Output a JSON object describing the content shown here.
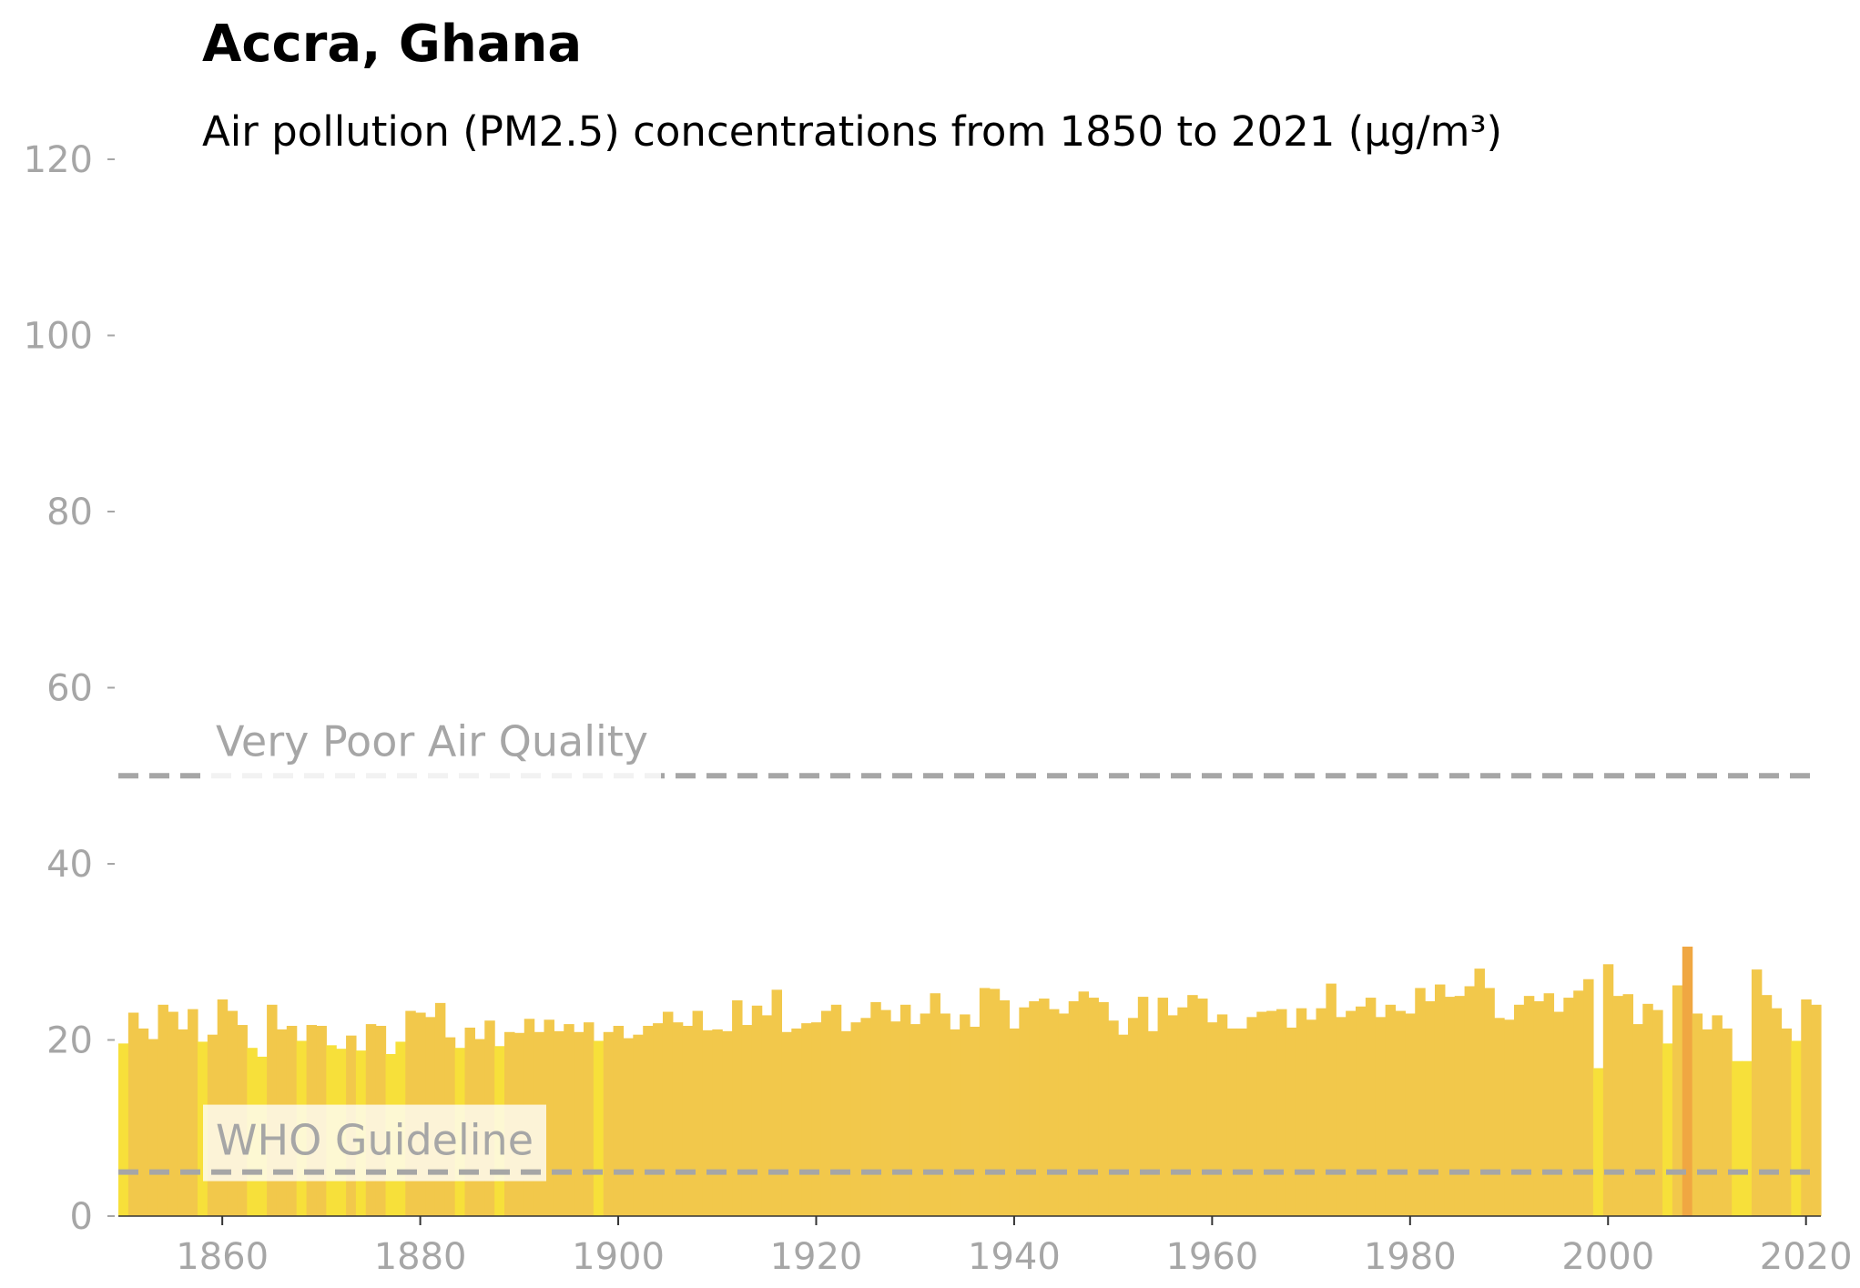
{
  "chart_data": {
    "type": "bar",
    "title": "Accra, Ghana",
    "subtitle": "Air pollution (PM2.5) concentrations from 1850 to 2021 (µg/m³)",
    "xlabel": "",
    "ylabel": "",
    "xlim": [
      1850,
      2022
    ],
    "ylim": [
      0,
      120
    ],
    "y_ticks": [
      0,
      20,
      40,
      60,
      80,
      100,
      120
    ],
    "x_ticks": [
      1860,
      1880,
      1900,
      1920,
      1940,
      1960,
      1980,
      2000,
      2020
    ],
    "grid": false,
    "x": [
      1850,
      1851,
      1852,
      1853,
      1854,
      1855,
      1856,
      1857,
      1858,
      1859,
      1860,
      1861,
      1862,
      1863,
      1864,
      1865,
      1866,
      1867,
      1868,
      1869,
      1870,
      1871,
      1872,
      1873,
      1874,
      1875,
      1876,
      1877,
      1878,
      1879,
      1880,
      1881,
      1882,
      1883,
      1884,
      1885,
      1886,
      1887,
      1888,
      1889,
      1890,
      1891,
      1892,
      1893,
      1894,
      1895,
      1896,
      1897,
      1898,
      1899,
      1900,
      1901,
      1902,
      1903,
      1904,
      1905,
      1906,
      1907,
      1908,
      1909,
      1910,
      1911,
      1912,
      1913,
      1914,
      1915,
      1916,
      1917,
      1918,
      1919,
      1920,
      1921,
      1922,
      1923,
      1924,
      1925,
      1926,
      1927,
      1928,
      1929,
      1930,
      1931,
      1932,
      1933,
      1934,
      1935,
      1936,
      1937,
      1938,
      1939,
      1940,
      1941,
      1942,
      1943,
      1944,
      1945,
      1946,
      1947,
      1948,
      1949,
      1950,
      1951,
      1952,
      1953,
      1954,
      1955,
      1956,
      1957,
      1958,
      1959,
      1960,
      1961,
      1962,
      1963,
      1964,
      1965,
      1966,
      1967,
      1968,
      1969,
      1970,
      1971,
      1972,
      1973,
      1974,
      1975,
      1976,
      1977,
      1978,
      1979,
      1980,
      1981,
      1982,
      1983,
      1984,
      1985,
      1986,
      1987,
      1988,
      1989,
      1990,
      1991,
      1992,
      1993,
      1994,
      1995,
      1996,
      1997,
      1998,
      1999,
      2000,
      2001,
      2002,
      2003,
      2004,
      2005,
      2006,
      2007,
      2008,
      2009,
      2010,
      2011,
      2012,
      2013,
      2014,
      2015,
      2016,
      2017,
      2018,
      2019,
      2020,
      2021
    ],
    "values": [
      19.6,
      23.1,
      21.3,
      20.1,
      24.0,
      23.2,
      21.2,
      23.5,
      19.8,
      20.6,
      24.6,
      23.3,
      21.7,
      19.1,
      18.1,
      24.0,
      21.2,
      21.6,
      19.9,
      21.7,
      21.6,
      19.4,
      19.0,
      20.5,
      18.8,
      21.8,
      21.6,
      18.4,
      19.8,
      23.3,
      23.1,
      22.6,
      24.2,
      20.3,
      19.1,
      21.4,
      20.1,
      22.2,
      19.3,
      20.9,
      20.8,
      22.4,
      20.9,
      22.3,
      21.0,
      21.8,
      20.9,
      22.0,
      19.9,
      20.9,
      21.6,
      20.2,
      20.6,
      21.6,
      21.9,
      23.2,
      22.0,
      21.6,
      23.3,
      21.1,
      21.2,
      21.0,
      24.5,
      21.7,
      23.9,
      22.8,
      25.7,
      20.9,
      21.3,
      21.9,
      22.0,
      23.3,
      24.0,
      21.0,
      22.0,
      22.5,
      24.3,
      23.4,
      22.1,
      24.0,
      21.8,
      23.0,
      25.3,
      23.0,
      21.2,
      22.9,
      21.5,
      25.9,
      25.8,
      24.5,
      21.3,
      23.7,
      24.4,
      24.7,
      23.5,
      23.0,
      24.4,
      25.5,
      24.8,
      24.3,
      22.2,
      20.6,
      22.5,
      24.9,
      21.0,
      24.8,
      22.8,
      23.7,
      25.1,
      24.7,
      22.0,
      22.9,
      21.3,
      21.3,
      22.6,
      23.2,
      23.3,
      23.5,
      21.4,
      23.6,
      22.3,
      23.6,
      26.4,
      22.6,
      23.3,
      23.8,
      24.8,
      22.6,
      24.0,
      23.3,
      23.0,
      25.9,
      24.4,
      26.3,
      24.9,
      25.0,
      26.1,
      28.1,
      25.9,
      22.5,
      22.3,
      24.0,
      25.0,
      24.4,
      25.3,
      23.2,
      24.8,
      25.6,
      26.9,
      16.8,
      28.6,
      25.0,
      25.2,
      21.8,
      24.1,
      23.4,
      19.6,
      26.2,
      30.6,
      23.0,
      21.2,
      22.8,
      21.3,
      17.6,
      17.6,
      28.0,
      25.1,
      23.6,
      21.3,
      19.9,
      24.6,
      24.0
    ],
    "colors": {
      "base": "#f2c84b",
      "bright": "#f7e03a",
      "peak": "#f0a742",
      "reference_line": "#a6a6a6",
      "tick_text": "#a6a6a6"
    },
    "reference_lines": [
      {
        "label": "Very Poor Air Quality",
        "y": 50
      },
      {
        "label": "WHO Guideline",
        "y": 5
      }
    ]
  }
}
